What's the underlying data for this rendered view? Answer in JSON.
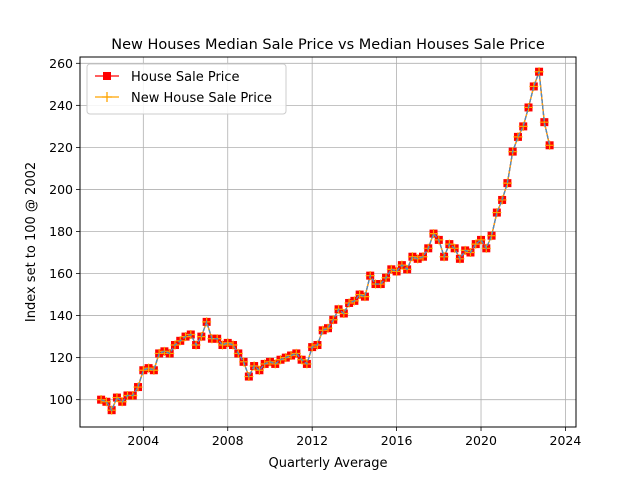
{
  "chart_data": {
    "type": "line",
    "title": "New Houses Median Sale Price vs Median Houses Sale Price",
    "xlabel": "Quarterly Average",
    "ylabel": "Index set to 100 @ 2002",
    "xlim": [
      2001.0,
      2024.5
    ],
    "ylim": [
      87,
      263
    ],
    "xticks": [
      2004,
      2008,
      2012,
      2016,
      2020,
      2024
    ],
    "yticks": [
      100,
      120,
      140,
      160,
      180,
      200,
      220,
      240,
      260
    ],
    "grid": true,
    "legend_position": "top-left",
    "x": [
      2002.0,
      2002.25,
      2002.5,
      2002.75,
      2003.0,
      2003.25,
      2003.5,
      2003.75,
      2004.0,
      2004.25,
      2004.5,
      2004.75,
      2005.0,
      2005.25,
      2005.5,
      2005.75,
      2006.0,
      2006.25,
      2006.5,
      2006.75,
      2007.0,
      2007.25,
      2007.5,
      2007.75,
      2008.0,
      2008.25,
      2008.5,
      2008.75,
      2009.0,
      2009.25,
      2009.5,
      2009.75,
      2010.0,
      2010.25,
      2010.5,
      2010.75,
      2011.0,
      2011.25,
      2011.5,
      2011.75,
      2012.0,
      2012.25,
      2012.5,
      2012.75,
      2013.0,
      2013.25,
      2013.5,
      2013.75,
      2014.0,
      2014.25,
      2014.5,
      2014.75,
      2015.0,
      2015.25,
      2015.5,
      2015.75,
      2016.0,
      2016.25,
      2016.5,
      2016.75,
      2017.0,
      2017.25,
      2017.5,
      2017.75,
      2018.0,
      2018.25,
      2018.5,
      2018.75,
      2019.0,
      2019.25,
      2019.5,
      2019.75,
      2020.0,
      2020.25,
      2020.5,
      2020.75,
      2021.0,
      2021.25,
      2021.5,
      2021.75,
      2022.0,
      2022.25,
      2022.5,
      2022.75,
      2023.0,
      2023.25
    ],
    "series": [
      {
        "name": "House Sale Price",
        "color": "#ff0000",
        "marker": "square",
        "values": [
          100,
          99,
          95,
          101,
          99,
          102,
          102,
          106,
          114,
          115,
          114,
          122,
          123,
          122,
          126,
          128,
          130,
          131,
          126,
          130,
          137,
          129,
          129,
          126,
          127,
          126,
          122,
          118,
          111,
          116,
          114,
          117,
          118,
          117,
          119,
          120,
          121,
          122,
          119,
          117,
          125,
          126,
          133,
          134,
          138,
          143,
          141,
          146,
          147,
          150,
          149,
          159,
          155,
          155,
          158,
          162,
          161,
          164,
          162,
          168,
          167,
          168,
          172,
          179,
          176,
          168,
          174,
          172,
          167,
          171,
          170,
          174,
          176,
          172,
          178,
          189,
          195,
          203,
          218,
          225,
          230,
          239,
          249,
          256,
          232,
          221
        ]
      },
      {
        "name": "New House Sale Price",
        "color": "#ffa500",
        "marker": "plus",
        "values": [
          100,
          99,
          95,
          101,
          99,
          102,
          102,
          106,
          114,
          115,
          114,
          122,
          123,
          122,
          126,
          128,
          130,
          131,
          126,
          130,
          137,
          129,
          129,
          126,
          127,
          126,
          122,
          118,
          111,
          116,
          114,
          117,
          118,
          117,
          119,
          120,
          121,
          122,
          119,
          117,
          125,
          126,
          133,
          134,
          138,
          143,
          141,
          146,
          147,
          150,
          149,
          159,
          155,
          155,
          158,
          162,
          161,
          164,
          162,
          168,
          167,
          168,
          172,
          179,
          176,
          168,
          174,
          172,
          167,
          171,
          170,
          174,
          176,
          172,
          178,
          189,
          195,
          203,
          218,
          225,
          230,
          239,
          249,
          256,
          232,
          221
        ]
      }
    ],
    "dashed_line_color": "#4a8cc4"
  }
}
